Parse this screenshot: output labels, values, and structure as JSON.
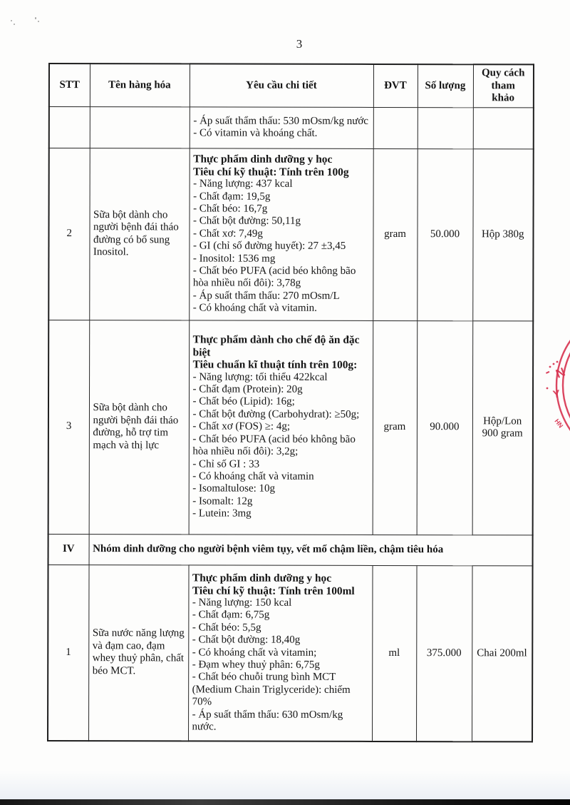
{
  "page": {
    "number": "3"
  },
  "table": {
    "headers": {
      "stt": "STT",
      "name": "Tên hàng hóa",
      "detail": "Yêu cầu chi tiết",
      "unit": "ĐVT",
      "quantity": "Số lượng",
      "spec": "Quy cách tham khảo"
    },
    "rows": {
      "cont": {
        "stt": "",
        "name": "",
        "details": [
          {
            "text": "- Áp suất thẩm thấu: 530 mOsm/kg nước",
            "bold": false
          },
          {
            "text": "- Có vitamin và khoáng chất.",
            "bold": false
          }
        ],
        "unit": "",
        "quantity": "",
        "spec": ""
      },
      "r2": {
        "stt": "2",
        "name": "Sữa bột dành cho người bệnh đái tháo đường có bổ sung Inositol.",
        "details": [
          {
            "text": "Thực phẩm dinh dưỡng y học",
            "bold": true
          },
          {
            "text": "Tiêu chí kỹ thuật: Tính trên 100g",
            "bold": true
          },
          {
            "text": "- Năng lượng: 437 kcal",
            "bold": false
          },
          {
            "text": "- Chất đạm: 19,5g",
            "bold": false
          },
          {
            "text": "- Chất béo: 16,7g",
            "bold": false
          },
          {
            "text": "- Chất bột đường: 50,11g",
            "bold": false
          },
          {
            "text": "- Chất xơ: 7,49g",
            "bold": false
          },
          {
            "text": "- GI (chỉ số đường huyết): 27 ±3,45",
            "bold": false
          },
          {
            "text": "- Inositol: 1536 mg",
            "bold": false
          },
          {
            "text": "- Chất béo PUFA (acid béo không bão hòa nhiều nối đôi): 3,78g",
            "bold": false
          },
          {
            "text": "- Áp suất thẩm thấu: 270 mOsm/L",
            "bold": false
          },
          {
            "text": "- Có khoáng chất và vitamin.",
            "bold": false
          }
        ],
        "unit": "gram",
        "quantity": "50.000",
        "spec": "Hộp 380g"
      },
      "r3": {
        "stt": "3",
        "name": "Sữa bột dành cho người bệnh đái tháo đường, hỗ trợ tim mạch và thị lực",
        "details": [
          {
            "text": "Thực phẩm dành cho chế độ ăn đặc biệt",
            "bold": true
          },
          {
            "text": "Tiêu chuẩn kĩ thuật tính trên 100g:",
            "bold": true
          },
          {
            "text": "- Năng lượng: tối thiểu 422kcal",
            "bold": false
          },
          {
            "text": "- Chất đạm (Protein): 20g",
            "bold": false
          },
          {
            "text": "- Chất béo (Lipid): 16g;",
            "bold": false
          },
          {
            "text": "- Chất bột đường (Carbohydrat): ≥50g;",
            "bold": false
          },
          {
            "text": "- Chất xơ (FOS) ≥: 4g;",
            "bold": false
          },
          {
            "text": "- Chất béo PUFA (acid béo không bão hòa nhiều nối đôi): 3,2g;",
            "bold": false
          },
          {
            "text": "- Chỉ số GI : 33",
            "bold": false
          },
          {
            "text": "- Có khoáng chất và vitamin",
            "bold": false
          },
          {
            "text": "- Isomaltulose: 10g",
            "bold": false
          },
          {
            "text": "- Isomalt: 12g",
            "bold": false
          },
          {
            "text": "- Lutein: 3mg",
            "bold": false
          }
        ],
        "unit": "gram",
        "quantity": "90.000",
        "spec": "Hộp/Lon 900 gram"
      },
      "section4": {
        "stt": "IV",
        "title": "Nhóm dinh dưỡng cho người bệnh viêm tụy, vết mổ chậm liền, chậm tiêu hóa"
      },
      "r4_1": {
        "stt": "1",
        "name": "Sữa nước năng lượng và đạm cao, đạm whey thuỷ phân, chất béo MCT.",
        "details": [
          {
            "text": "Thực phẩm dinh dưỡng y học",
            "bold": true
          },
          {
            "text": "Tiêu chí kỹ thuật: Tính trên 100ml",
            "bold": true
          },
          {
            "text": "- Năng lượng: 150 kcal",
            "bold": false
          },
          {
            "text": "- Chất đạm: 6,75g",
            "bold": false
          },
          {
            "text": "- Chất béo: 5,5g",
            "bold": false
          },
          {
            "text": "- Chất bột đường: 18,40g",
            "bold": false
          },
          {
            "text": "- Có khoáng chất và vitamin;",
            "bold": false
          },
          {
            "text": "- Đạm whey thuỷ phân: 6,75g",
            "bold": false
          },
          {
            "text": "- Chất béo chuỗi trung bình MCT (Medium Chain Triglyceride): chiếm 70%",
            "bold": false
          },
          {
            "text": "- Áp suất thẩm thấu: 630 mOsm/kg nước.",
            "bold": false
          }
        ],
        "unit": "ml",
        "quantity": "375.000",
        "spec": "Chai 200ml"
      }
    }
  },
  "stamp": {
    "color": "#d83350",
    "letters": {
      "l1": "N",
      "l2": "Y",
      "l3": "HN"
    }
  }
}
